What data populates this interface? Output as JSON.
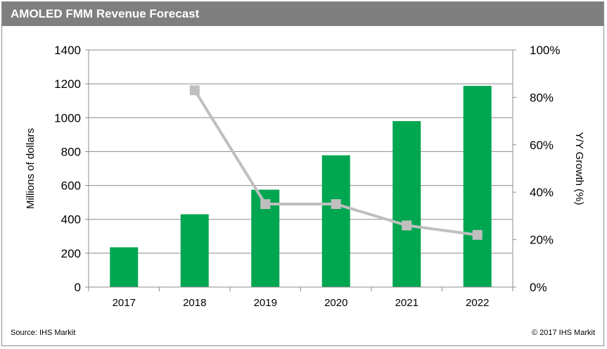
{
  "chart_data": {
    "type": "bar",
    "title": "AMOLED FMM Revenue Forecast",
    "categories": [
      "2017",
      "2018",
      "2019",
      "2020",
      "2021",
      "2022"
    ],
    "series": [
      {
        "type": "bar",
        "axis": "left",
        "values": [
          235,
          430,
          575,
          778,
          980,
          1188
        ]
      },
      {
        "type": "line",
        "axis": "right",
        "values": [
          null,
          83,
          35,
          35,
          26,
          22
        ]
      }
    ],
    "ylabel": "Millions of dollars",
    "ylim": [
      0,
      1400
    ],
    "yticks": [
      "0",
      "200",
      "400",
      "600",
      "800",
      "1000",
      "1200",
      "1400"
    ],
    "y2label": "Y/Y  Growth (%)",
    "y2lim": [
      0,
      100
    ],
    "y2ticks": [
      "0%",
      "20%",
      "40%",
      "60%",
      "80%",
      "100%"
    ],
    "grid": true,
    "legend": "none",
    "colors": {
      "bar": "#00a650",
      "line": "#bfbfbf",
      "grid": "#8c8c8c",
      "titlebar": "#7f7f7f"
    }
  },
  "footer": {
    "source": "Source: IHS Markit",
    "copyright": "© 2017 IHS Markit"
  }
}
